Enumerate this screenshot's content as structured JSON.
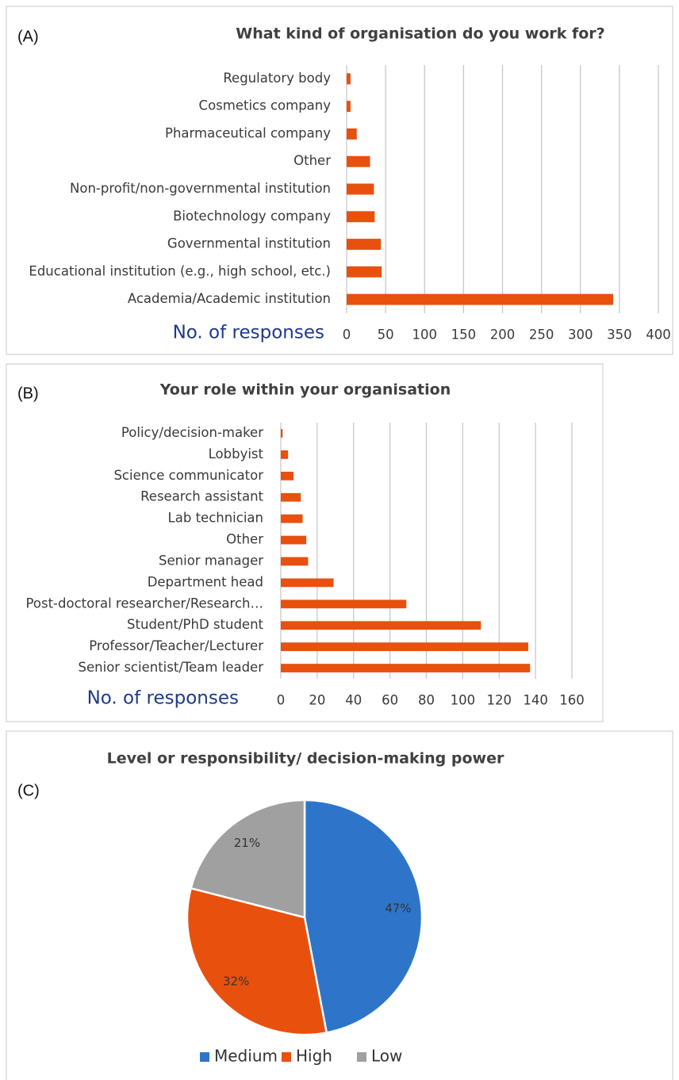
{
  "chart_data": [
    {
      "type": "bar",
      "horizontal": true,
      "panel_label": "(A)",
      "title": "What kind of organisation do you work for?",
      "categories": [
        "Regulatory body",
        "Cosmetics company",
        "Pharmaceutical company",
        "Other",
        "Non-profit/non-governmental institution",
        "Biotechnology company",
        "Governmental institution",
        "Educational institution (e.g., high school, etc.)",
        "Academia/Academic institution"
      ],
      "values": [
        5,
        5,
        13,
        30,
        35,
        36,
        44,
        45,
        342
      ],
      "color": "#e8500e",
      "xlabel": "No. of responses",
      "xlim": [
        0,
        400
      ],
      "xticks": [
        0,
        50,
        100,
        150,
        200,
        250,
        300,
        350,
        400
      ],
      "grid": true
    },
    {
      "type": "bar",
      "horizontal": true,
      "panel_label": "(B)",
      "title": "Your role within your organisation",
      "categories": [
        "Policy/decision-maker",
        "Lobbyist",
        "Science communicator",
        "Research assistant",
        "Lab technician",
        "Other",
        "Senior manager",
        "Department head",
        "Post-doctoral researcher/Research…",
        "Student/PhD student",
        "Professor/Teacher/Lecturer",
        "Senior scientist/Team leader"
      ],
      "values": [
        1,
        4,
        7,
        11,
        12,
        14,
        15,
        29,
        69,
        110,
        136,
        137
      ],
      "color": "#e8500e",
      "xlabel": "No. of responses",
      "xlim": [
        0,
        160
      ],
      "xticks": [
        0,
        20,
        40,
        60,
        80,
        100,
        120,
        140,
        160
      ],
      "grid": true
    },
    {
      "type": "pie",
      "panel_label": "(C)",
      "title": "Level or responsibility/ decision-making power",
      "categories": [
        "Medium",
        "High",
        "Low"
      ],
      "values": [
        47,
        32,
        21
      ],
      "value_labels": [
        "47%",
        "32%",
        "21%"
      ],
      "colors": [
        "#2e75c9",
        "#e8500e",
        "#a0a0a0"
      ],
      "legend": "bottom"
    }
  ]
}
